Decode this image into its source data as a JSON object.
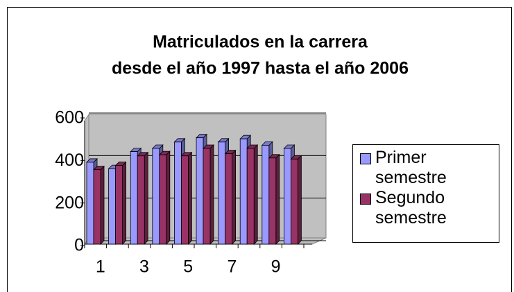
{
  "chart_data": {
    "type": "bar3d",
    "title": [
      "Matriculados en la carrera",
      "desde el año 1997 hasta el año 2006"
    ],
    "categories": [
      1,
      null,
      3,
      null,
      5,
      null,
      7,
      null,
      9,
      null
    ],
    "series": [
      {
        "name": "Primer semestre",
        "color": "#9999ff",
        "values": [
          385,
          355,
          435,
          450,
          480,
          500,
          480,
          495,
          465,
          450
        ]
      },
      {
        "name": "Segundo semestre",
        "color": "#993366",
        "values": [
          350,
          370,
          415,
          420,
          415,
          450,
          425,
          450,
          405,
          400
        ]
      }
    ],
    "ylim": [
      0,
      600
    ],
    "yticks": [
      0,
      200,
      400,
      600
    ],
    "grid": true,
    "legend": "right"
  }
}
